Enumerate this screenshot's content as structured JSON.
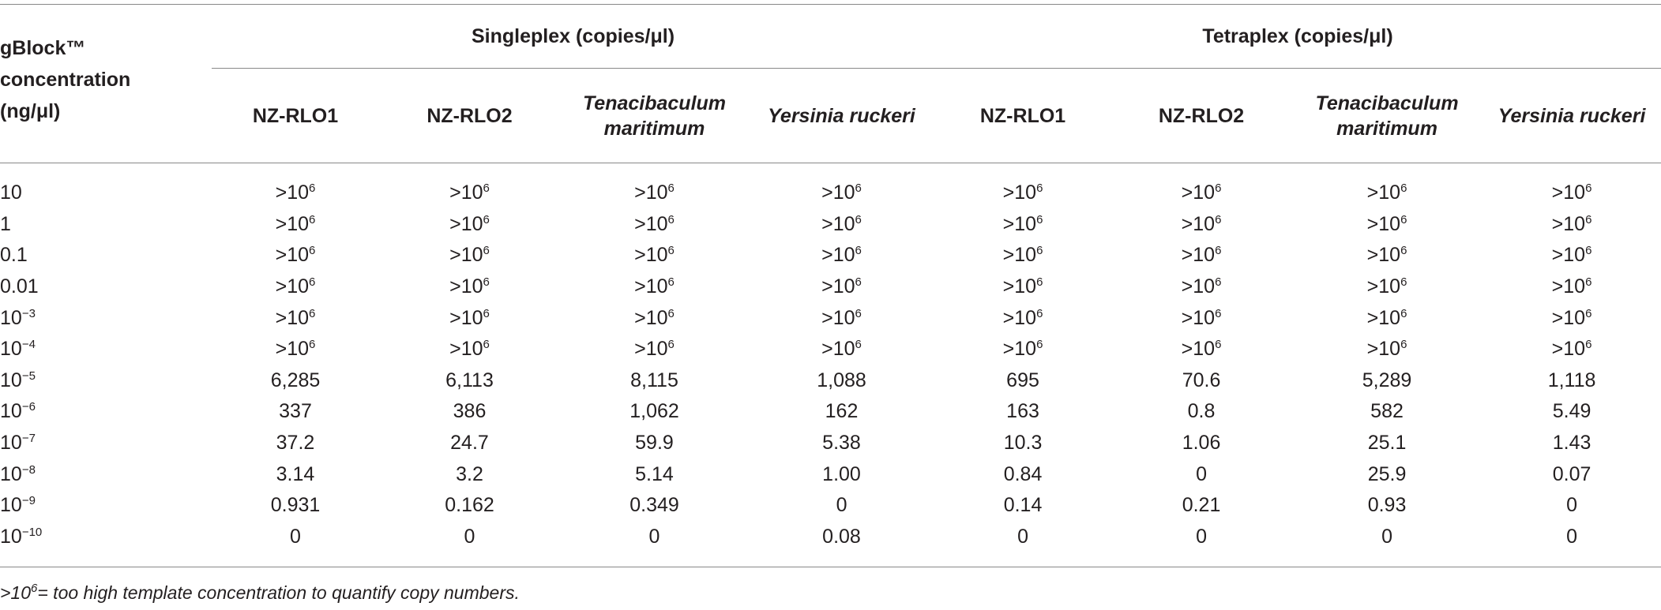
{
  "table": {
    "header": {
      "row_label": "gBlock™ concentration (ng/μl)",
      "groups": [
        "Singleplex (copies/μl)",
        "Tetraplex (copies/μl)"
      ],
      "columns": [
        {
          "text": "NZ-RLO1",
          "italic": false
        },
        {
          "text": "NZ-RLO2",
          "italic": false
        },
        {
          "text": "Tenacibaculum maritimum",
          "italic": true
        },
        {
          "text": "Yersinia ruckeri",
          "italic": true
        },
        {
          "text": "NZ-RLO1",
          "italic": false
        },
        {
          "text": "NZ-RLO2",
          "italic": false
        },
        {
          "text": "Tenacibaculum maritimum",
          "italic": true
        },
        {
          "text": "Yersinia ruckeri",
          "italic": true
        }
      ]
    },
    "rows": [
      [
        "10",
        {
          "base": ">10",
          "sup": "6"
        },
        {
          "base": ">10",
          "sup": "6"
        },
        {
          "base": ">10",
          "sup": "6"
        },
        {
          "base": ">10",
          "sup": "6"
        },
        {
          "base": ">10",
          "sup": "6"
        },
        {
          "base": ">10",
          "sup": "6"
        },
        {
          "base": ">10",
          "sup": "6"
        },
        {
          "base": ">10",
          "sup": "6"
        }
      ],
      [
        "1",
        {
          "base": ">10",
          "sup": "6"
        },
        {
          "base": ">10",
          "sup": "6"
        },
        {
          "base": ">10",
          "sup": "6"
        },
        {
          "base": ">10",
          "sup": "6"
        },
        {
          "base": ">10",
          "sup": "6"
        },
        {
          "base": ">10",
          "sup": "6"
        },
        {
          "base": ">10",
          "sup": "6"
        },
        {
          "base": ">10",
          "sup": "6"
        }
      ],
      [
        "0.1",
        {
          "base": ">10",
          "sup": "6"
        },
        {
          "base": ">10",
          "sup": "6"
        },
        {
          "base": ">10",
          "sup": "6"
        },
        {
          "base": ">10",
          "sup": "6"
        },
        {
          "base": ">10",
          "sup": "6"
        },
        {
          "base": ">10",
          "sup": "6"
        },
        {
          "base": ">10",
          "sup": "6"
        },
        {
          "base": ">10",
          "sup": "6"
        }
      ],
      [
        "0.01",
        {
          "base": ">10",
          "sup": "6"
        },
        {
          "base": ">10",
          "sup": "6"
        },
        {
          "base": ">10",
          "sup": "6"
        },
        {
          "base": ">10",
          "sup": "6"
        },
        {
          "base": ">10",
          "sup": "6"
        },
        {
          "base": ">10",
          "sup": "6"
        },
        {
          "base": ">10",
          "sup": "6"
        },
        {
          "base": ">10",
          "sup": "6"
        }
      ],
      [
        {
          "base": "10",
          "sup": "−3"
        },
        {
          "base": ">10",
          "sup": "6"
        },
        {
          "base": ">10",
          "sup": "6"
        },
        {
          "base": ">10",
          "sup": "6"
        },
        {
          "base": ">10",
          "sup": "6"
        },
        {
          "base": ">10",
          "sup": "6"
        },
        {
          "base": ">10",
          "sup": "6"
        },
        {
          "base": ">10",
          "sup": "6"
        },
        {
          "base": ">10",
          "sup": "6"
        }
      ],
      [
        {
          "base": "10",
          "sup": "−4"
        },
        {
          "base": ">10",
          "sup": "6"
        },
        {
          "base": ">10",
          "sup": "6"
        },
        {
          "base": ">10",
          "sup": "6"
        },
        {
          "base": ">10",
          "sup": "6"
        },
        {
          "base": ">10",
          "sup": "6"
        },
        {
          "base": ">10",
          "sup": "6"
        },
        {
          "base": ">10",
          "sup": "6"
        },
        {
          "base": ">10",
          "sup": "6"
        }
      ],
      [
        {
          "base": "10",
          "sup": "−5"
        },
        "6,285",
        "6,113",
        "8,115",
        "1,088",
        "695",
        "70.6",
        "5,289",
        "1,118"
      ],
      [
        {
          "base": "10",
          "sup": "−6"
        },
        "337",
        "386",
        "1,062",
        "162",
        "163",
        "0.8",
        "582",
        "5.49"
      ],
      [
        {
          "base": "10",
          "sup": "−7"
        },
        "37.2",
        "24.7",
        "59.9",
        "5.38",
        "10.3",
        "1.06",
        "25.1",
        "1.43"
      ],
      [
        {
          "base": "10",
          "sup": "−8"
        },
        "3.14",
        "3.2",
        "5.14",
        "1.00",
        "0.84",
        "0",
        "25.9",
        "0.07"
      ],
      [
        {
          "base": "10",
          "sup": "−9"
        },
        "0.931",
        "0.162",
        "0.349",
        "0",
        "0.14",
        "0.21",
        "0.93",
        "0"
      ],
      [
        {
          "base": "10",
          "sup": "−10"
        },
        "0",
        "0",
        "0",
        "0.08",
        "0",
        "0",
        "0",
        "0"
      ]
    ],
    "footnote": {
      "base": ">10",
      "sup": "6",
      "text": "= too high template concentration to quantify copy numbers."
    }
  }
}
